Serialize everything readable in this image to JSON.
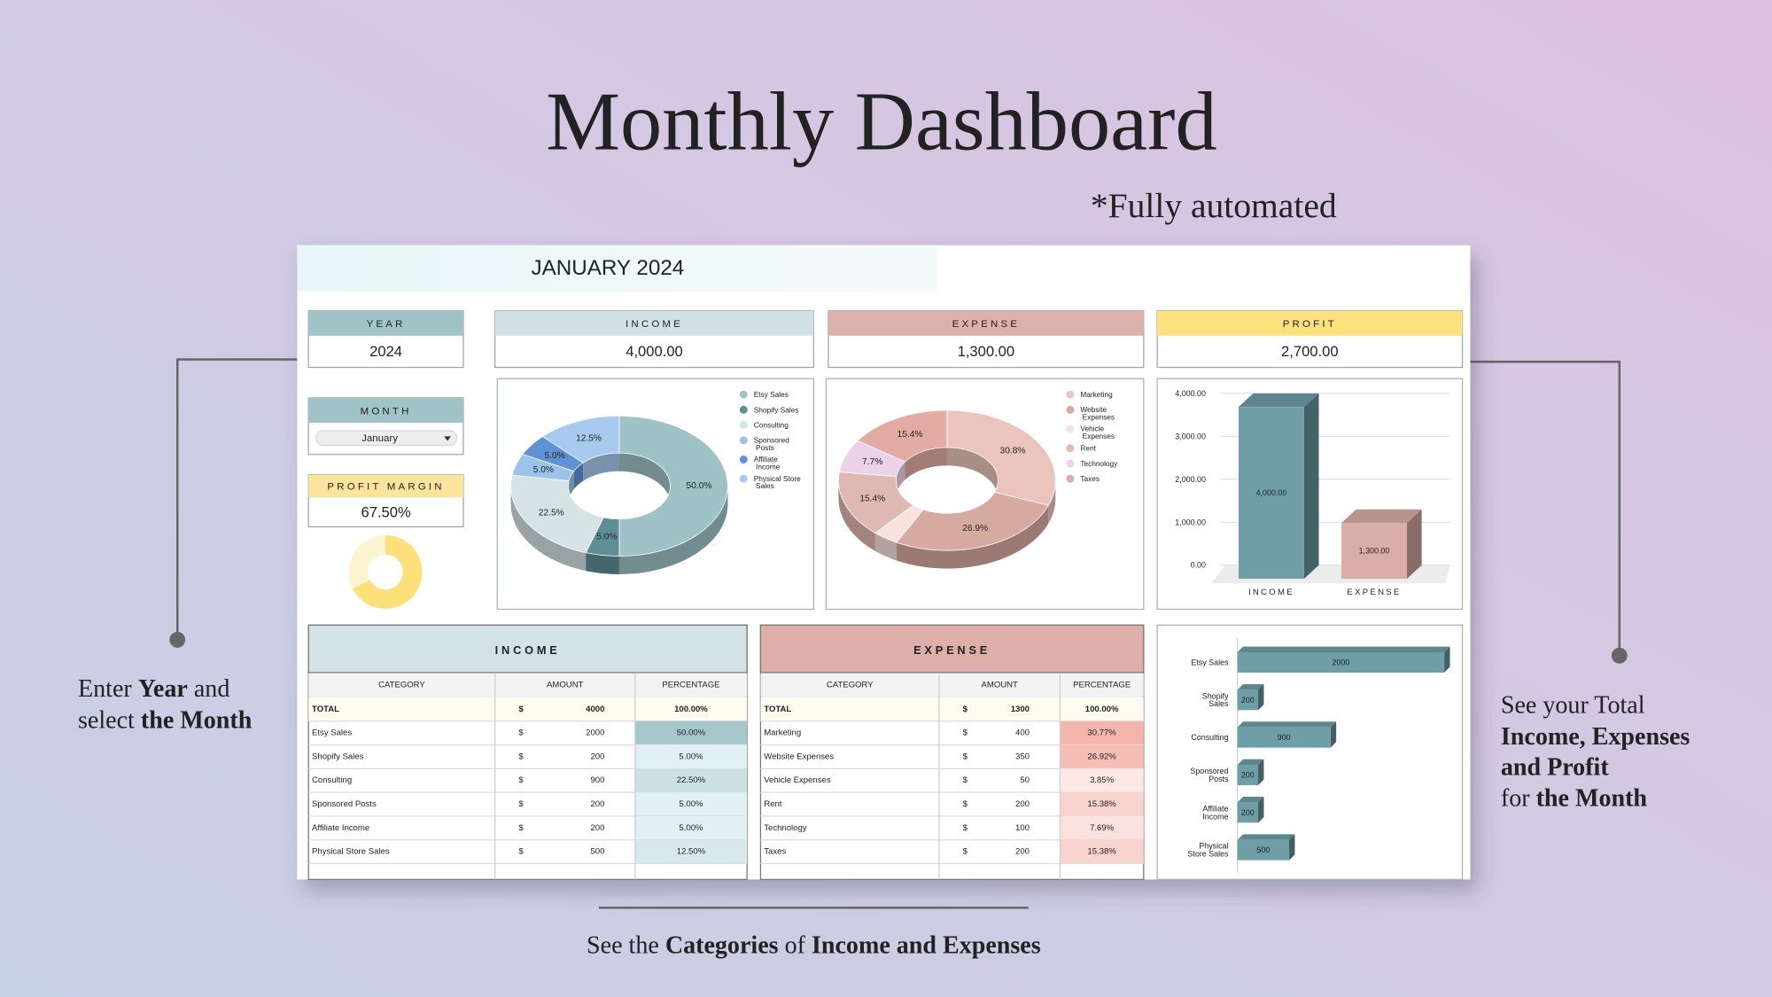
{
  "header": {
    "title": "Monthly Dashboard",
    "subtitle": "*Fully automated"
  },
  "dashboard": {
    "heading": "JANUARY 2024",
    "year": {
      "label": "YEAR",
      "value": "2024",
      "color": "#9fc3c6"
    },
    "month": {
      "label": "MONTH",
      "value": "January",
      "color": "#9fc3c6"
    },
    "profit_margin": {
      "label": "PROFIT MARGIN",
      "value": 67.5,
      "value_label": "67.50%",
      "color": "#fde07a",
      "track_color": "#fdf4d2"
    },
    "kpis": [
      {
        "label": "INCOME",
        "value": "4,000.00",
        "color": "#d2e2e4"
      },
      {
        "label": "EXPENSE",
        "value": "1,300.00",
        "color": "#deb0aa"
      },
      {
        "label": "PROFIT",
        "value": "2,700.00",
        "color": "#fde17e"
      }
    ],
    "charts": [
      {
        "type": "donut",
        "categories": [
          "Etsy Sales",
          "Shopify Sales",
          "Consulting",
          "Sponsored Posts",
          "Affiliate Income",
          "Physical Store Sales"
        ],
        "values": [
          50,
          5,
          22.5,
          5,
          5,
          12.5
        ],
        "value_labels": [
          "50.0%",
          "5.0%",
          "22.5%",
          "5.0%",
          "5.0%",
          "12.5%"
        ],
        "colors": [
          "#9fc2c6",
          "#5e8f97",
          "#d5e3e5",
          "#9ec3e8",
          "#5f93d6",
          "#a9caef"
        ]
      },
      {
        "type": "donut",
        "categories": [
          "Marketing",
          "Website Expenses",
          "Vehicle Expenses",
          "Rent",
          "Technology",
          "Taxes"
        ],
        "values": [
          30.8,
          26.9,
          3.8,
          15.4,
          7.7,
          15.4
        ],
        "value_labels": [
          "30.8%",
          "26.9%",
          null,
          "15.4%",
          "7.7%",
          "15.4%"
        ],
        "colors": [
          "#ebc5bd",
          "#d7aaa1",
          "#f8e2dd",
          "#dfb8b1",
          "#ead3e8",
          "#e2aca4"
        ]
      },
      {
        "type": "bar3d",
        "categories": [
          "INCOME",
          "EXPENSE"
        ],
        "values": [
          4000,
          1300
        ],
        "value_labels": [
          "4,000.00",
          "1,300.00"
        ],
        "colors": [
          "#6f9ea7",
          "#d9aea6"
        ],
        "ylim": [
          0,
          4000
        ],
        "yticks": [
          {
            "value": 0,
            "label": "0.00"
          },
          {
            "value": 1000,
            "label": "1,000.00"
          },
          {
            "value": 2000,
            "label": "2,000.00"
          },
          {
            "value": 3000,
            "label": "3,000.00"
          },
          {
            "value": 4000,
            "label": "4,000.00"
          }
        ],
        "grid": true
      },
      {
        "type": "hbar3d",
        "categories": [
          "Etsy Sales",
          "Shopify Sales",
          "Consulting",
          "Sponsored Posts",
          "Affiliate Income",
          "Physical Store Sales"
        ],
        "values": [
          2000,
          200,
          900,
          200,
          200,
          500
        ],
        "color": "#6f9ea7",
        "xlim": [
          0,
          2000
        ]
      }
    ],
    "tables": [
      {
        "title": "INCOME",
        "color": "#d3e3e5",
        "heat_colors": [
          "#e8f4f6",
          "#a6c8cc"
        ],
        "columns": [
          "CATEGORY",
          "AMOUNT",
          "PERCENTAGE"
        ],
        "rows": [
          [
            "TOTAL",
            "$",
            4000,
            "100.00%"
          ],
          [
            "Etsy Sales",
            "$",
            2000,
            "50.00%"
          ],
          [
            "Shopify Sales",
            "$",
            200,
            "5.00%"
          ],
          [
            "Consulting",
            "$",
            900,
            "22.50%"
          ],
          [
            "Sponsored Posts",
            "$",
            200,
            "5.00%"
          ],
          [
            "Affiliate Income",
            "$",
            200,
            "5.00%"
          ],
          [
            "Physical Store Sales",
            "$",
            500,
            "12.50%"
          ]
        ]
      },
      {
        "title": "EXPENSE",
        "color": "#dcafa8",
        "heat_colors": [
          "#fdf1ee",
          "#f4b5ac"
        ],
        "columns": [
          "CATEGORY",
          "AMOUNT",
          "PERCENTAGE"
        ],
        "rows": [
          [
            "TOTAL",
            "$",
            1300,
            "100.00%"
          ],
          [
            "Marketing",
            "$",
            400,
            "30.77%"
          ],
          [
            "Website Expenses",
            "$",
            350,
            "26.92%"
          ],
          [
            "Vehicle Expenses",
            "$",
            50,
            "3.85%"
          ],
          [
            "Rent",
            "$",
            200,
            "15.38%"
          ],
          [
            "Technology",
            "$",
            100,
            "7.69%"
          ],
          [
            "Taxes",
            "$",
            200,
            "15.38%"
          ]
        ]
      }
    ]
  },
  "notes": {
    "left": [
      [
        "Enter",
        "Year",
        "and"
      ],
      [
        "select",
        "the Month"
      ]
    ],
    "right": [
      [
        "See your Total"
      ],
      [
        "Income, Expenses"
      ],
      [
        "and Profit"
      ],
      [
        "for",
        "the Month"
      ]
    ],
    "bottom": [
      [
        "See the",
        "Categories",
        "of",
        "Income and Expenses"
      ]
    ]
  }
}
